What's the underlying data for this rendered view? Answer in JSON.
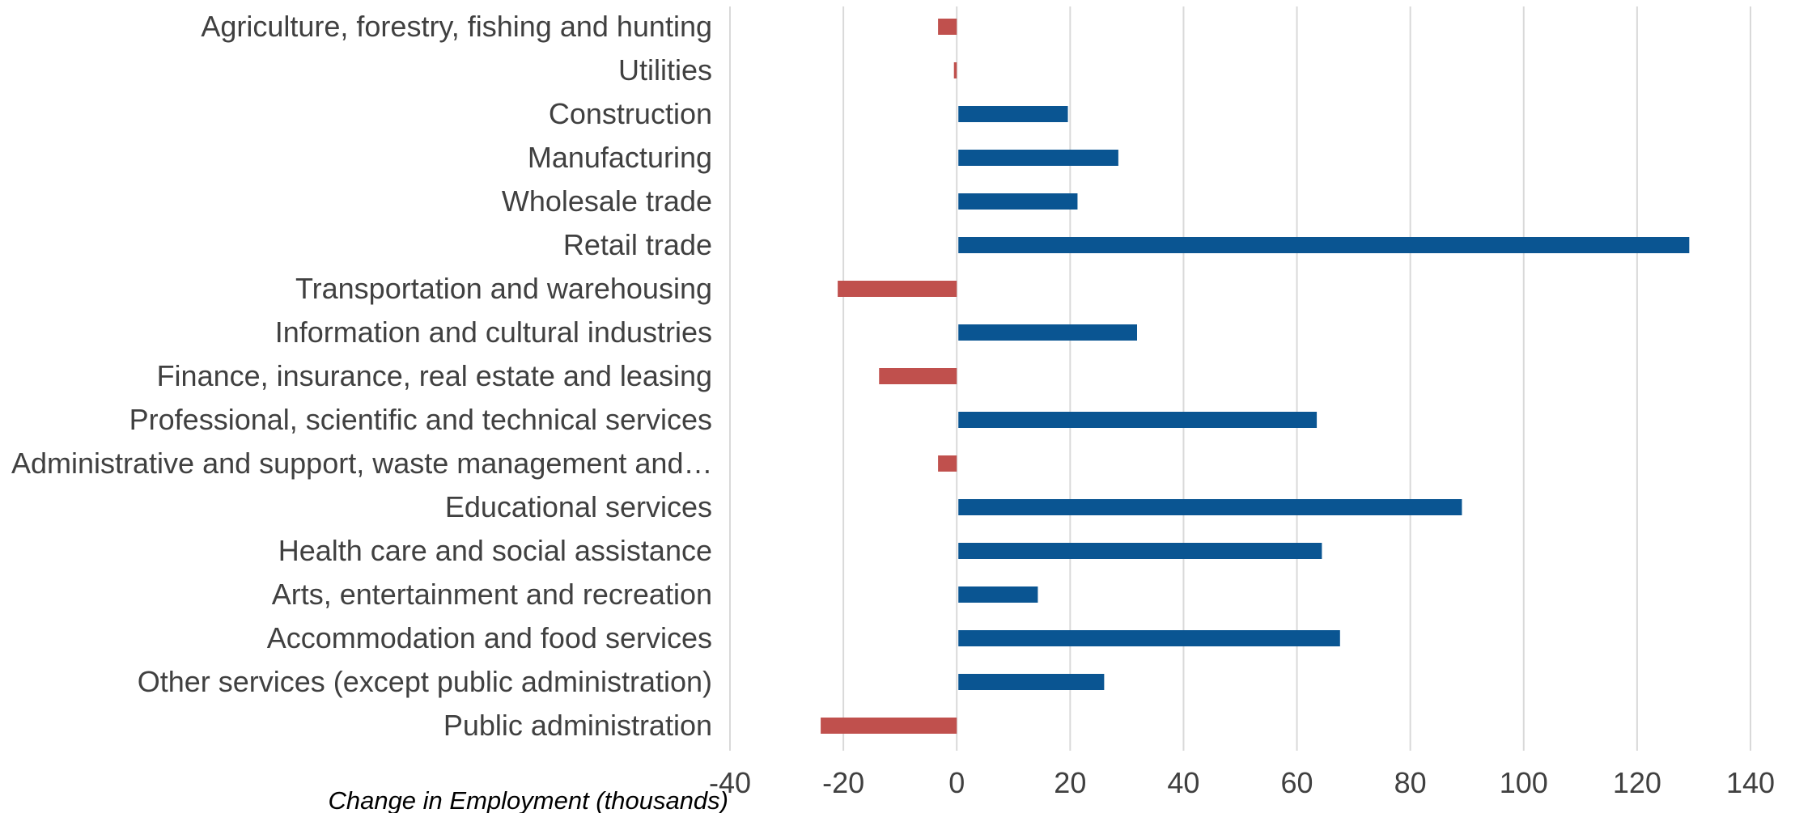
{
  "chart_data": {
    "type": "bar",
    "orientation": "horizontal",
    "categories": [
      "Agriculture, forestry, fishing and hunting",
      "Utilities",
      "Construction",
      "Manufacturing",
      "Wholesale trade",
      "Retail trade",
      "Transportation  and warehousing",
      "Information and cultural industries",
      "Finance, insurance, real estate and leasing",
      "Professional, scientific and technical services",
      "Administrative and support, waste management and…",
      "Educational services",
      "Health care and social assistance",
      "Arts, entertainment and recreation",
      "Accommodation and food services",
      "Other services (except public administration)",
      "Public administration"
    ],
    "values": [
      -3.3,
      -0.5,
      19.6,
      28.5,
      21.3,
      129.2,
      -21.0,
      31.8,
      -13.7,
      63.5,
      -3.3,
      89.1,
      64.4,
      14.3,
      67.6,
      26.0,
      -24.0
    ],
    "xlabel": "Change in Employment (thousands)",
    "ylabel": "",
    "xlim": [
      -40,
      140
    ],
    "xticks": [
      -40,
      -20,
      0,
      20,
      40,
      60,
      80,
      100,
      120,
      140
    ],
    "xtick_labels": [
      "-40",
      "-20",
      "0",
      "20",
      "40",
      "60",
      "80",
      "100",
      "120",
      "140"
    ],
    "grid": "vertical",
    "legend": "none",
    "colors": {
      "positive": "#0a5592",
      "negative": "#c0504d"
    }
  }
}
